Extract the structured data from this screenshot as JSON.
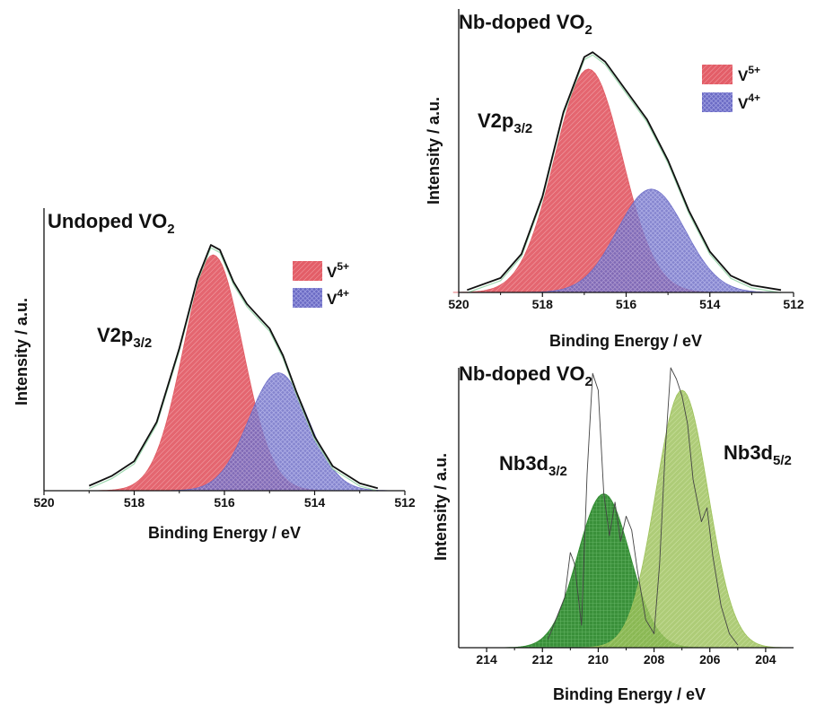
{
  "chart_data": [
    {
      "id": "undoped",
      "type": "area",
      "title": "Undoped VO",
      "title_sub": "2",
      "xlabel": "Binding Energy / eV",
      "ylabel": "Intensity / a.u.",
      "xlim": [
        520,
        512
      ],
      "ylim": [
        0,
        1.15
      ],
      "xticks": [
        "520",
        "518",
        "516",
        "514",
        "512"
      ],
      "annotation": {
        "main": "V2p",
        "sub": "3/2",
        "at": [
          517.6,
          0.93
        ]
      },
      "legend": [
        {
          "label": "V",
          "sup": "5+",
          "color": "#e05c64"
        },
        {
          "label": "V",
          "sup": "4+",
          "color": "#6f6fc8"
        }
      ],
      "legend_position": "top-right",
      "grid": false,
      "peaks": [
        {
          "name": "V5+",
          "center": 516.25,
          "height": 0.96,
          "fwhm": 1.55,
          "color": "#e05c64"
        },
        {
          "name": "V4+",
          "center": 514.8,
          "height": 0.48,
          "fwhm": 1.55,
          "color": "#6f6fc8"
        }
      ],
      "envelope": {
        "x": [
          519.0,
          518.5,
          518.0,
          517.5,
          517.0,
          516.6,
          516.3,
          516.1,
          515.8,
          515.5,
          515.2,
          515.0,
          514.7,
          514.4,
          514.0,
          513.6,
          513.0,
          512.6
        ],
        "y": [
          0.02,
          0.06,
          0.12,
          0.28,
          0.58,
          0.86,
          1.0,
          0.98,
          0.85,
          0.76,
          0.7,
          0.66,
          0.55,
          0.4,
          0.22,
          0.1,
          0.03,
          0.01
        ]
      }
    },
    {
      "id": "nb-vo2",
      "type": "area",
      "title": "Nb-doped VO",
      "title_sub": "2",
      "xlabel": "Binding Energy / eV",
      "ylabel": "Intensity / a.u.",
      "xlim": [
        520,
        512
      ],
      "ylim": [
        0,
        1.15
      ],
      "xticks": [
        "520",
        "518",
        "516",
        "514",
        "512"
      ],
      "annotation": {
        "main": "V2p",
        "sub": "3/2",
        "at": [
          518.8,
          0.82
        ]
      },
      "legend": [
        {
          "label": "V",
          "sup": "5+",
          "color": "#e05c64"
        },
        {
          "label": "V",
          "sup": "4+",
          "color": "#6f6fc8"
        }
      ],
      "legend_position": "top-right",
      "grid": false,
      "peaks": [
        {
          "name": "V5+",
          "center": 516.9,
          "height": 0.93,
          "fwhm": 1.9,
          "color": "#e05c64"
        },
        {
          "name": "V4+",
          "center": 515.4,
          "height": 0.43,
          "fwhm": 1.9,
          "color": "#6f6fc8"
        }
      ],
      "envelope": {
        "x": [
          519.8,
          519.0,
          518.5,
          518.0,
          517.5,
          517.0,
          516.8,
          516.5,
          516.0,
          515.5,
          515.0,
          514.5,
          514.0,
          513.5,
          513.0,
          512.3
        ],
        "y": [
          0.01,
          0.06,
          0.16,
          0.4,
          0.75,
          0.98,
          1.0,
          0.96,
          0.84,
          0.72,
          0.55,
          0.34,
          0.17,
          0.07,
          0.03,
          0.01
        ]
      }
    },
    {
      "id": "nb-3d",
      "type": "area",
      "title": "Nb-doped VO",
      "title_sub": "2",
      "xlabel": "Binding Energy / eV",
      "ylabel": "Intensity / a.u.",
      "xlim": [
        215,
        203
      ],
      "ylim": [
        0,
        1.0
      ],
      "xticks": [
        "214",
        "212",
        "210",
        "208",
        "206",
        "204"
      ],
      "annotations": [
        {
          "main": "Nb3d",
          "sub": "3/2",
          "at": [
            213.1,
            0.86
          ]
        },
        {
          "main": "Nb3d",
          "sub": "5/2",
          "at": [
            205.6,
            0.87
          ]
        }
      ],
      "legend_position": "none",
      "grid": false,
      "peaks": [
        {
          "name": "Nb3d3/2",
          "center": 209.8,
          "height": 0.55,
          "fwhm": 2.2,
          "color": "#2f8a2f"
        },
        {
          "name": "Nb3d5/2",
          "center": 207.0,
          "height": 0.92,
          "fwhm": 2.2,
          "color": "#9dc25a"
        }
      ],
      "envelope": {
        "x": [
          211.8,
          211.2,
          211.0,
          210.85,
          210.6,
          210.4,
          210.2,
          210.0,
          209.8,
          209.6,
          209.4,
          209.2,
          209.0,
          208.8,
          208.6,
          208.3,
          208.0,
          207.8,
          207.6,
          207.4,
          207.2,
          207.0,
          206.8,
          206.6,
          206.3,
          206.1,
          205.9,
          205.6,
          205.3,
          205.0
        ],
        "y": [
          0.03,
          0.18,
          0.34,
          0.3,
          0.08,
          0.62,
          0.98,
          0.92,
          0.55,
          0.4,
          0.52,
          0.38,
          0.47,
          0.42,
          0.28,
          0.1,
          0.05,
          0.3,
          0.7,
          1.0,
          0.96,
          0.9,
          0.8,
          0.6,
          0.45,
          0.5,
          0.33,
          0.15,
          0.05,
          0.01
        ]
      }
    }
  ]
}
